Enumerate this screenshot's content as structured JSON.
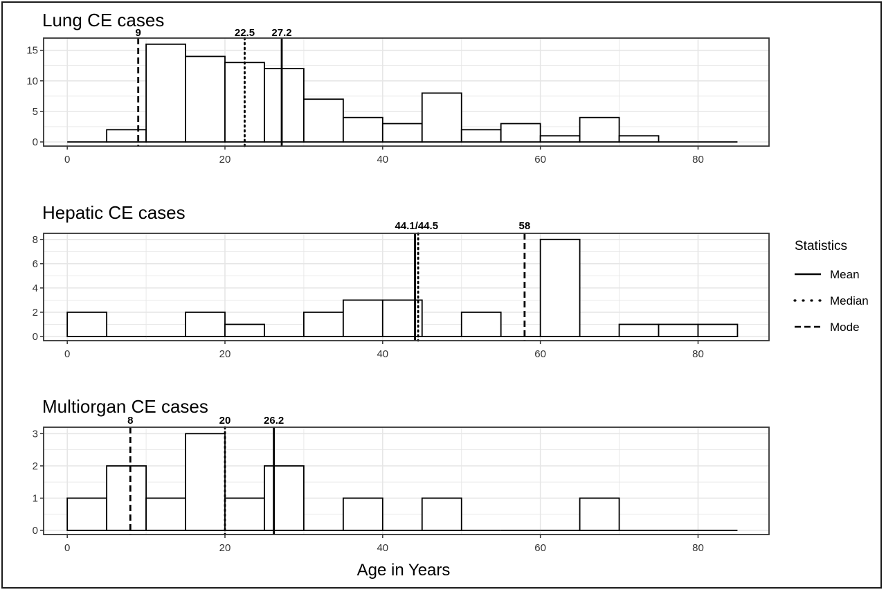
{
  "chart_data": [
    {
      "type": "bar",
      "title": "Lung CE cases",
      "bin_width": 5,
      "bin_starts": [
        0,
        5,
        10,
        15,
        20,
        25,
        30,
        35,
        40,
        45,
        50,
        55,
        60,
        65,
        70,
        75,
        80
      ],
      "values": [
        0,
        2,
        16,
        14,
        13,
        12,
        7,
        4,
        3,
        8,
        2,
        3,
        1,
        4,
        1,
        0,
        0
      ],
      "ylim": [
        0,
        17
      ],
      "yticks": [
        0,
        5,
        10,
        15
      ],
      "xlim": [
        -3,
        89
      ],
      "xticks": [
        0,
        20,
        40,
        60,
        80
      ],
      "statistics": {
        "mean": 27.2,
        "median": 22.5,
        "mode": 9,
        "labels": [
          {
            "text": "9",
            "x": 9
          },
          {
            "text": "22.5",
            "x": 22.5
          },
          {
            "text": "27.2",
            "x": 27.2
          }
        ]
      }
    },
    {
      "type": "bar",
      "title": "Hepatic CE cases",
      "bin_width": 5,
      "bin_starts": [
        0,
        5,
        10,
        15,
        20,
        25,
        30,
        35,
        40,
        45,
        50,
        55,
        60,
        65,
        70,
        75,
        80
      ],
      "values": [
        2,
        0,
        0,
        2,
        1,
        0,
        2,
        3,
        3,
        0,
        2,
        0,
        8,
        0,
        1,
        1,
        1
      ],
      "ylim": [
        0,
        8.5
      ],
      "yticks": [
        0,
        2,
        4,
        6,
        8
      ],
      "xlim": [
        -3,
        89
      ],
      "xticks": [
        0,
        20,
        40,
        60,
        80
      ],
      "statistics": {
        "mean": 44.1,
        "median": 44.5,
        "mode": 58,
        "labels": [
          {
            "text": "44.1/44.5",
            "x": 44.3
          },
          {
            "text": "58",
            "x": 58
          }
        ]
      }
    },
    {
      "type": "bar",
      "title": "Multiorgan CE cases",
      "bin_width": 5,
      "bin_starts": [
        0,
        5,
        10,
        15,
        20,
        25,
        30,
        35,
        40,
        45,
        50,
        55,
        60,
        65,
        70,
        75,
        80
      ],
      "values": [
        1,
        2,
        1,
        3,
        1,
        2,
        0,
        1,
        0,
        1,
        0,
        0,
        0,
        1,
        0,
        0,
        0
      ],
      "ylim": [
        0,
        3.2
      ],
      "yticks": [
        0,
        1,
        2,
        3
      ],
      "xlim": [
        -3,
        89
      ],
      "xticks": [
        0,
        20,
        40,
        60,
        80
      ],
      "statistics": {
        "mean": 26.2,
        "median": 20,
        "mode": 8,
        "labels": [
          {
            "text": "8",
            "x": 8
          },
          {
            "text": "20",
            "x": 20
          },
          {
            "text": "26.2",
            "x": 26.2
          }
        ]
      }
    }
  ],
  "xlabel": "Age in Years",
  "legend": {
    "title": "Statistics",
    "placement": "right",
    "items": [
      {
        "label": "Mean",
        "style": "solid"
      },
      {
        "label": "Median",
        "style": "dotted"
      },
      {
        "label": "Mode",
        "style": "dashed"
      }
    ]
  },
  "colors": {
    "bar_fill": "#ffffff",
    "bar_stroke": "#000000",
    "grid": "#e6e6e6",
    "axis": "#333333"
  }
}
